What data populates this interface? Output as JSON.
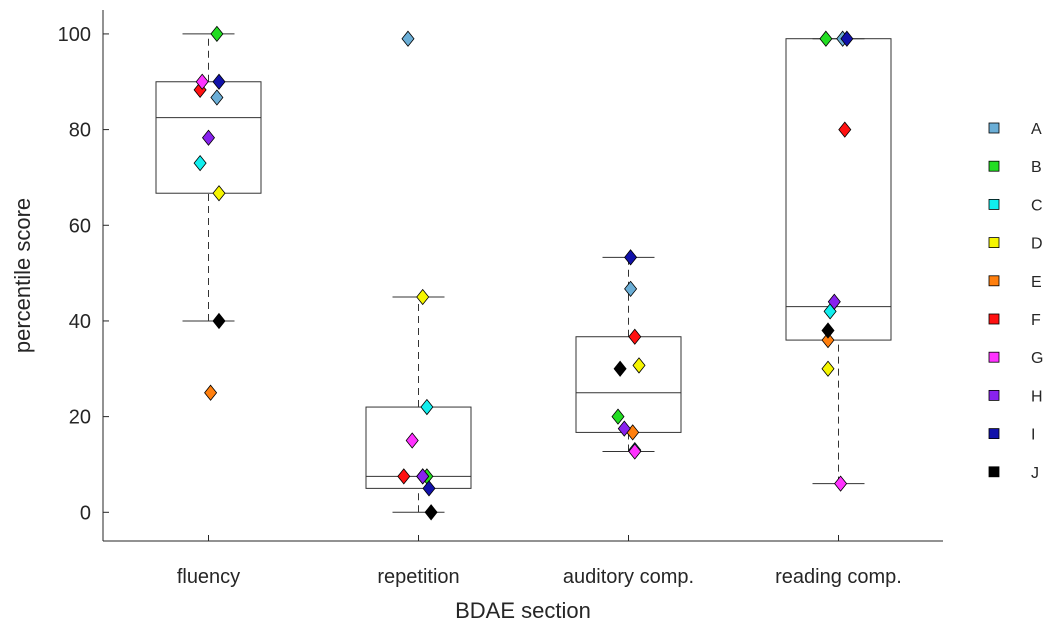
{
  "chart_data": {
    "type": "box",
    "xlabel": "BDAE section",
    "ylabel": "percentile score",
    "ylim": [
      -6,
      105
    ],
    "yticks": [
      0,
      20,
      40,
      60,
      80,
      100
    ],
    "categories": [
      "fluency",
      "repetition",
      "auditory comp.",
      "reading comp."
    ],
    "boxes": [
      {
        "category": "fluency",
        "q1": 66.7,
        "median": 82.5,
        "q3": 90.0,
        "whisker_low": 40.0,
        "whisker_high": 100.0
      },
      {
        "category": "repetition",
        "q1": 5.0,
        "median": 7.5,
        "q3": 22.0,
        "whisker_low": 0.0,
        "whisker_high": 45.0
      },
      {
        "category": "auditory comp.",
        "q1": 16.7,
        "median": 25.0,
        "q3": 36.7,
        "whisker_low": 12.7,
        "whisker_high": 53.3
      },
      {
        "category": "reading comp.",
        "q1": 36.0,
        "median": 43.0,
        "q3": 99.0,
        "whisker_low": 6.0,
        "whisker_high": 99.0
      }
    ],
    "series": [
      {
        "name": "A",
        "color": "#6baed6",
        "values": [
          86.7,
          99.0,
          46.7,
          99.0
        ],
        "jitter": [
          0.04,
          -0.05,
          0.01,
          0.02
        ]
      },
      {
        "name": "B",
        "color": "#22dd22",
        "values": [
          100.0,
          7.5,
          20.0,
          99.0
        ],
        "jitter": [
          0.04,
          0.04,
          -0.05,
          -0.06
        ]
      },
      {
        "name": "C",
        "color": "#11eeee",
        "values": [
          73.0,
          22.0,
          13.0,
          42.0
        ],
        "jitter": [
          -0.04,
          0.04,
          0.03,
          -0.04
        ]
      },
      {
        "name": "D",
        "color": "#f5f500",
        "values": [
          66.7,
          45.0,
          30.7,
          30.0
        ],
        "jitter": [
          0.05,
          0.02,
          0.05,
          -0.05
        ]
      },
      {
        "name": "E",
        "color": "#ff7f0e",
        "values": [
          25.0,
          7.5,
          16.7,
          36.0
        ],
        "jitter": [
          0.01,
          0.02,
          0.02,
          -0.05
        ]
      },
      {
        "name": "F",
        "color": "#ff1111",
        "values": [
          88.3,
          7.5,
          36.7,
          80.0
        ],
        "jitter": [
          -0.04,
          -0.07,
          0.03,
          0.03
        ]
      },
      {
        "name": "G",
        "color": "#ff33ff",
        "values": [
          90.0,
          15.0,
          12.7,
          6.0
        ],
        "jitter": [
          -0.03,
          -0.03,
          0.03,
          0.01
        ]
      },
      {
        "name": "H",
        "color": "#8822ee",
        "values": [
          78.3,
          7.5,
          17.5,
          44.0
        ],
        "jitter": [
          0.0,
          0.02,
          -0.02,
          -0.02
        ]
      },
      {
        "name": "I",
        "color": "#1111aa",
        "values": [
          90.0,
          5.0,
          53.3,
          99.0
        ],
        "jitter": [
          0.05,
          0.05,
          0.01,
          0.04
        ]
      },
      {
        "name": "J",
        "color": "#000000",
        "values": [
          40.0,
          0.0,
          30.0,
          38.0
        ],
        "jitter": [
          0.05,
          0.06,
          -0.04,
          -0.05
        ]
      }
    ],
    "legend": {
      "position": "right"
    },
    "grid": false
  }
}
